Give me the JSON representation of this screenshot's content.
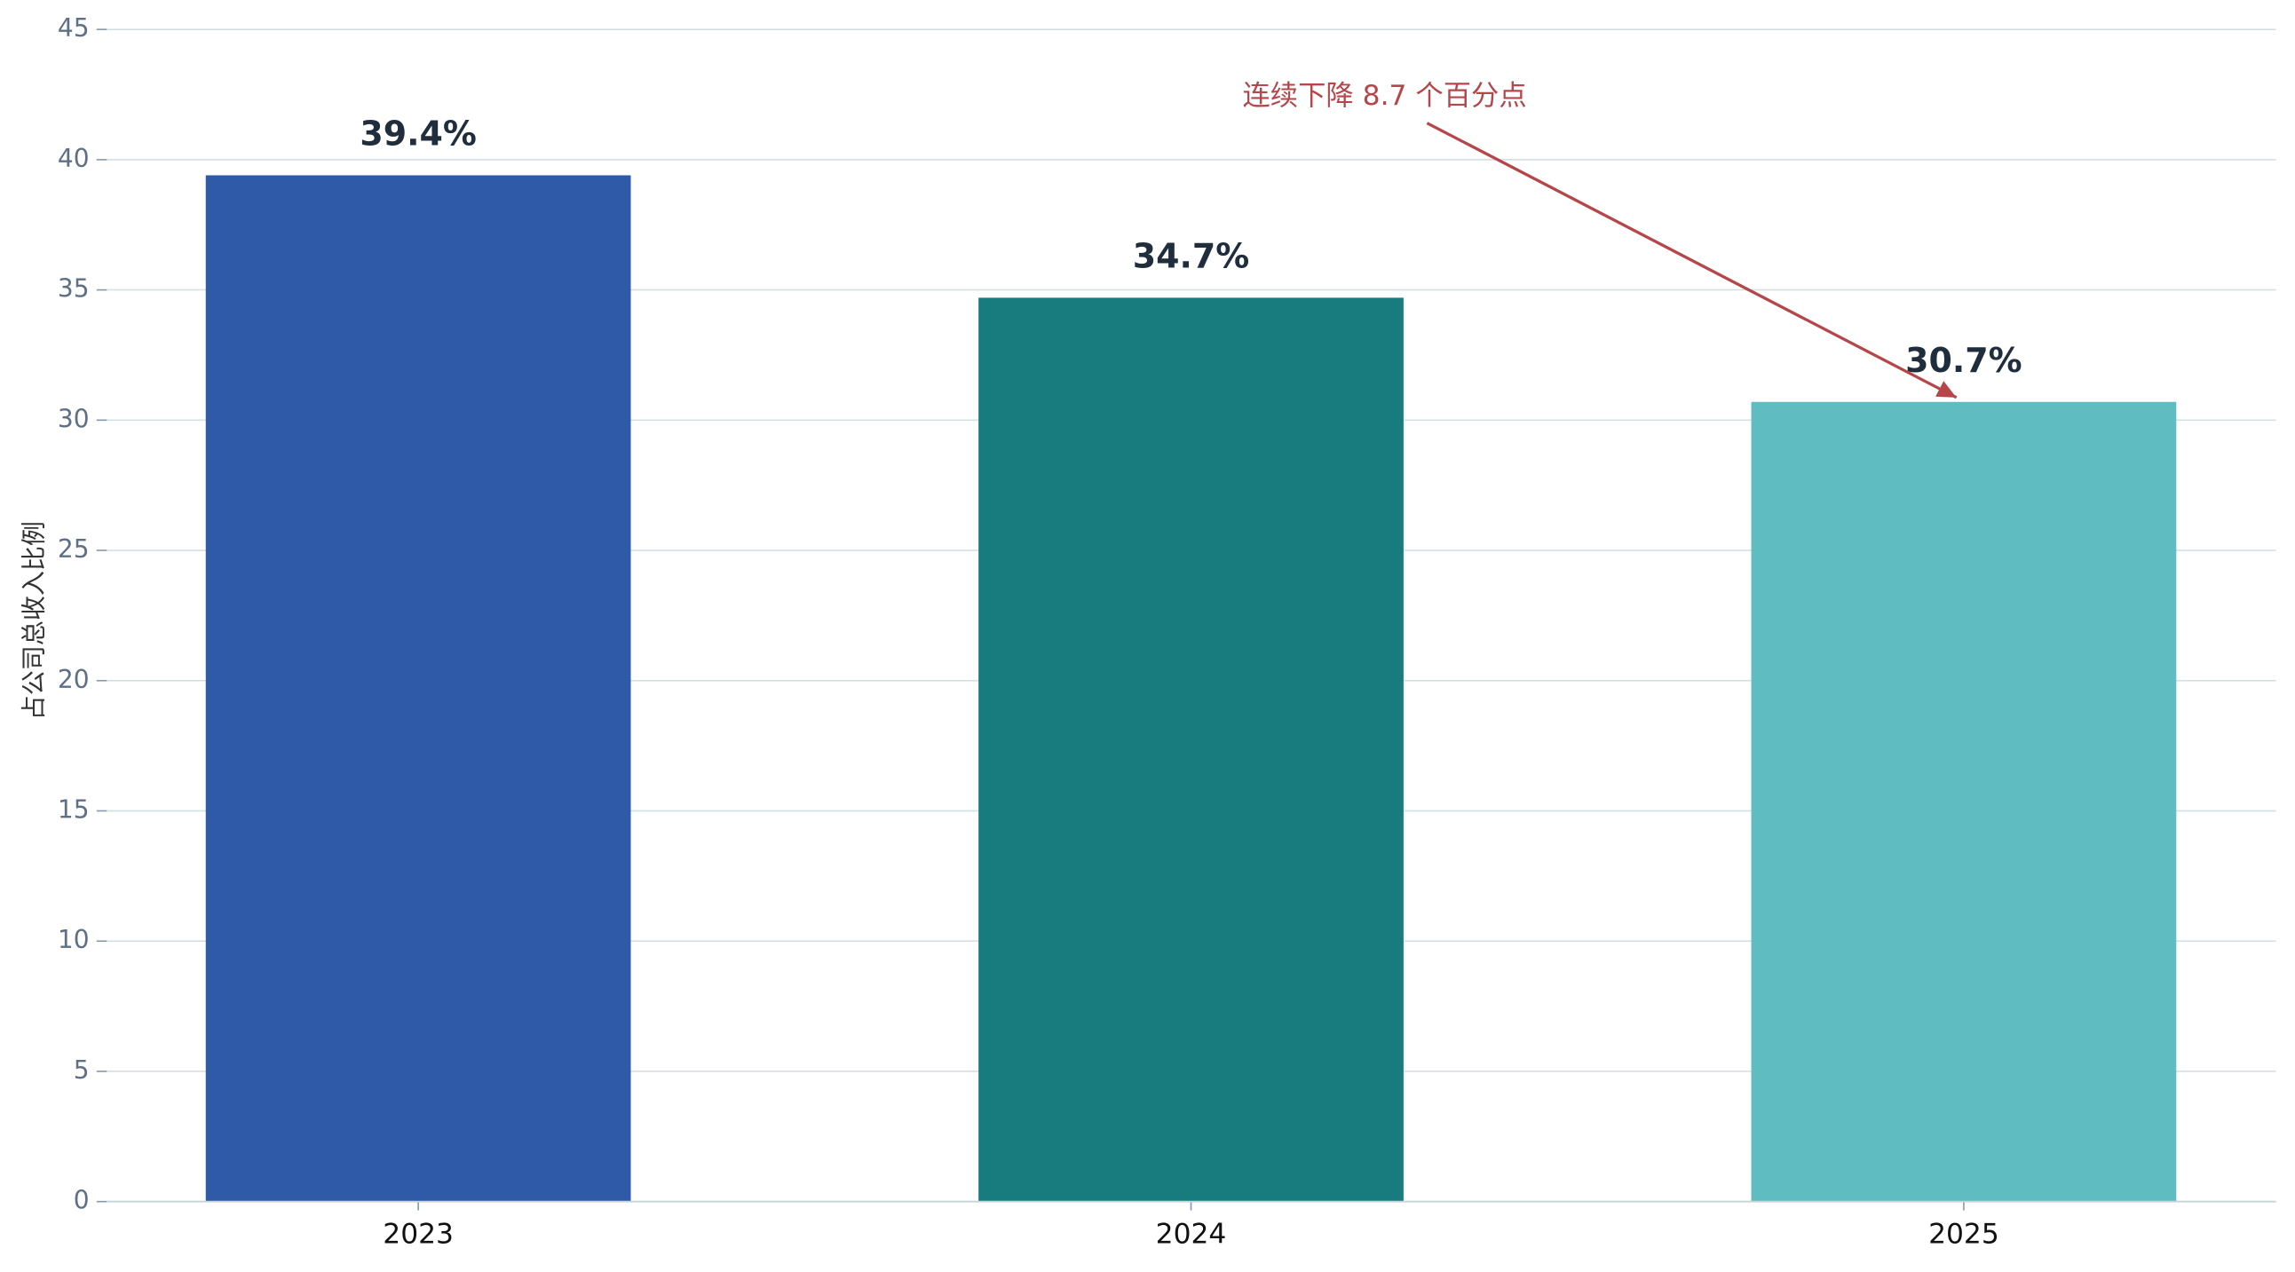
{
  "chart_data": {
    "type": "bar",
    "y_label": "占公司总收入比例",
    "categories": [
      "2023",
      "2024",
      "2025"
    ],
    "values": [
      39.4,
      34.7,
      30.7
    ],
    "value_labels": [
      "39.4%",
      "34.7%",
      "30.7%"
    ],
    "colors": [
      "#2e5aa7",
      "#187c7e",
      "#5fbdc2"
    ],
    "ylim": [
      0,
      45
    ],
    "yticks": [
      0,
      5,
      10,
      15,
      20,
      25,
      30,
      35,
      40,
      45
    ],
    "grid": true,
    "annotation": "连续下降 8.7 个百分点",
    "annotation_color": "#b5464a"
  }
}
